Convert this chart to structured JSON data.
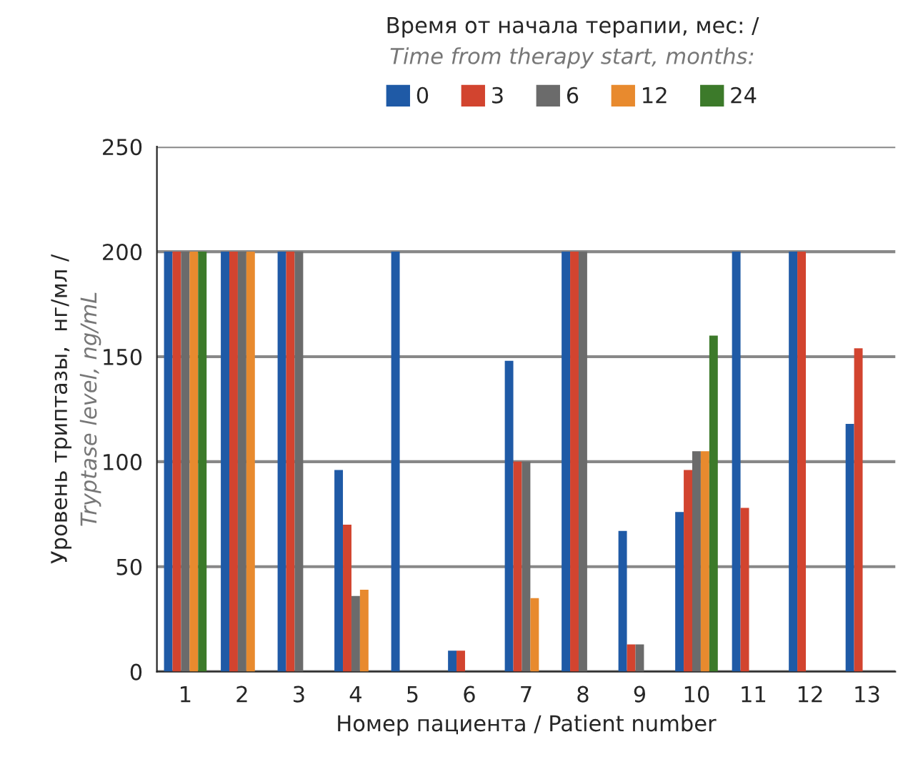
{
  "chart_data": {
    "type": "bar",
    "categories": [
      "1",
      "2",
      "3",
      "4",
      "5",
      "6",
      "7",
      "8",
      "9",
      "10",
      "11",
      "12",
      "13"
    ],
    "series": [
      {
        "name": "0",
        "color": "#1f5aa6",
        "values": [
          200,
          200,
          200,
          96,
          200,
          10,
          148,
          200,
          67,
          76,
          200,
          200,
          118
        ]
      },
      {
        "name": "3",
        "color": "#d2442f",
        "values": [
          200,
          200,
          200,
          70,
          null,
          10,
          100,
          200,
          13,
          96,
          78,
          200,
          154
        ]
      },
      {
        "name": "6",
        "color": "#6b6b6b",
        "values": [
          200,
          200,
          200,
          36,
          null,
          null,
          100,
          200,
          13,
          105,
          null,
          null,
          null
        ]
      },
      {
        "name": "12",
        "color": "#e88a2e",
        "values": [
          200,
          200,
          null,
          39,
          null,
          null,
          35,
          null,
          null,
          105,
          null,
          null,
          null
        ]
      },
      {
        "name": "24",
        "color": "#3c7a2a",
        "values": [
          200,
          null,
          null,
          null,
          null,
          null,
          null,
          null,
          null,
          160,
          null,
          null,
          null
        ]
      }
    ],
    "legend_title": "Время от начала терапии, мес: /\nTime from therapy start, months:",
    "xlabel": "Номер пациента / Patient number",
    "ylabel": "Уровень триптазы,  нг/мл /\nTryptase level, ng/mL",
    "ylim": [
      0,
      250
    ],
    "yticks": [
      0,
      50,
      100,
      150,
      200,
      250
    ],
    "grid": "y",
    "legend": "top"
  }
}
